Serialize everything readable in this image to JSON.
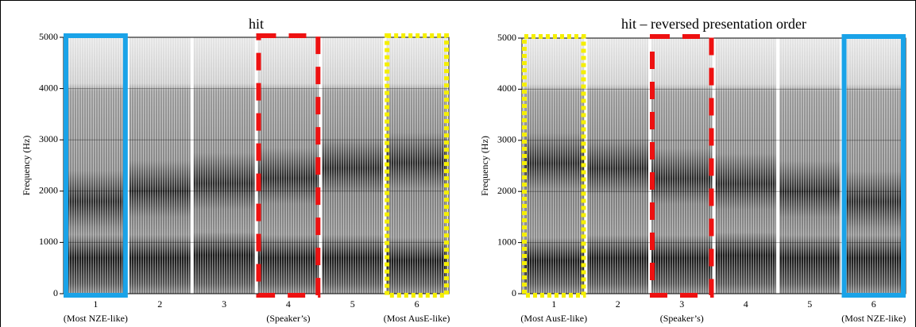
{
  "chart_data": [
    {
      "type": "spectrogram",
      "title": "hit",
      "ylabel": "Frequency (Hz)",
      "ylim": [
        0,
        5000
      ],
      "yticks": [
        0,
        1000,
        2000,
        3000,
        4000,
        5000
      ],
      "categories": [
        "1",
        "2",
        "3",
        "4",
        "5",
        "6"
      ],
      "category_notes": [
        "(Most NZE-like)",
        null,
        null,
        "(Speaker’s)",
        null,
        "(Most AusE-like)"
      ],
      "highlights": [
        {
          "index": 0,
          "color": "#1aa3e8",
          "style": "solid"
        },
        {
          "index": 3,
          "color": "#ee1111",
          "style": "dashed"
        },
        {
          "index": 5,
          "color": "#f5ef00",
          "style": "dotted"
        }
      ]
    },
    {
      "type": "spectrogram",
      "title": "hit – reversed presentation order",
      "ylabel": "Frequency (Hz)",
      "ylim": [
        0,
        5000
      ],
      "yticks": [
        0,
        1000,
        2000,
        3000,
        4000,
        5000
      ],
      "categories": [
        "1",
        "2",
        "3",
        "4",
        "5",
        "6"
      ],
      "category_notes": [
        "(Most AusE-like)",
        null,
        "(Speaker’s)",
        null,
        null,
        "(Most NZE-like)"
      ],
      "highlights": [
        {
          "index": 0,
          "color": "#f5ef00",
          "style": "dotted"
        },
        {
          "index": 2,
          "color": "#ee1111",
          "style": "dashed"
        },
        {
          "index": 5,
          "color": "#1aa3e8",
          "style": "solid"
        }
      ]
    }
  ]
}
